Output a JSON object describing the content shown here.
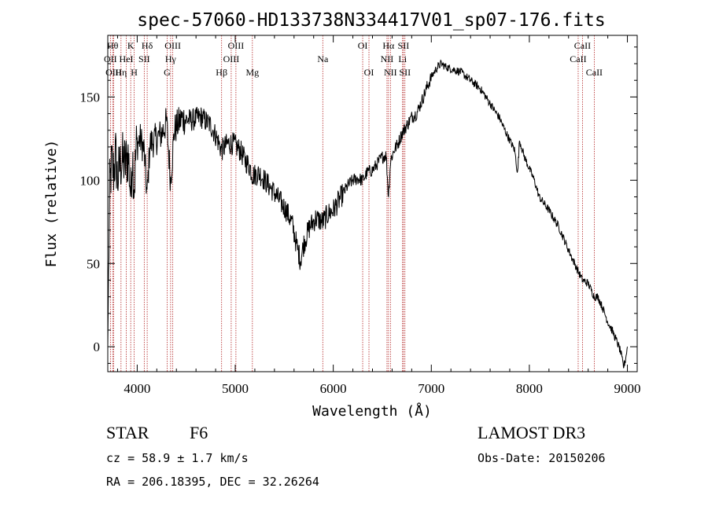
{
  "chart_data": {
    "type": "line",
    "title": "spec-57060-HD133738N334417V01_sp07-176.fits",
    "xlabel": "Wavelength (Å)",
    "ylabel": "Flux (relative)",
    "xlim": [
      3700,
      9100
    ],
    "ylim": [
      -15,
      187
    ],
    "xticks": [
      4000,
      5000,
      6000,
      7000,
      8000,
      9000
    ],
    "yticks": [
      0,
      50,
      100,
      150
    ],
    "series": [
      {
        "name": "flux",
        "anchors": [
          [
            3700,
            0
          ],
          [
            3705,
            25
          ],
          [
            3712,
            60
          ],
          [
            3720,
            95
          ],
          [
            3740,
            110
          ],
          [
            3760,
            105
          ],
          [
            3780,
            115
          ],
          [
            3800,
            100
          ],
          [
            3820,
            108
          ],
          [
            3850,
            112
          ],
          [
            3880,
            110
          ],
          [
            3910,
            115
          ],
          [
            3935,
            90
          ],
          [
            3950,
            118
          ],
          [
            3970,
            95
          ],
          [
            3990,
            120
          ],
          [
            4030,
            125
          ],
          [
            4070,
            118
          ],
          [
            4101,
            90
          ],
          [
            4130,
            122
          ],
          [
            4200,
            125
          ],
          [
            4250,
            128
          ],
          [
            4300,
            135
          ],
          [
            4340,
            100
          ],
          [
            4380,
            130
          ],
          [
            4450,
            137
          ],
          [
            4550,
            136
          ],
          [
            4650,
            138
          ],
          [
            4750,
            133
          ],
          [
            4800,
            127
          ],
          [
            4861,
            118
          ],
          [
            4920,
            122
          ],
          [
            4980,
            122
          ],
          [
            5050,
            118
          ],
          [
            5100,
            112
          ],
          [
            5150,
            108
          ],
          [
            5175,
            103
          ],
          [
            5250,
            104
          ],
          [
            5300,
            100
          ],
          [
            5380,
            94
          ],
          [
            5450,
            88
          ],
          [
            5520,
            82
          ],
          [
            5580,
            74
          ],
          [
            5630,
            60
          ],
          [
            5665,
            52
          ],
          [
            5700,
            62
          ],
          [
            5760,
            72
          ],
          [
            5820,
            77
          ],
          [
            5893,
            75
          ],
          [
            5950,
            80
          ],
          [
            6000,
            82
          ],
          [
            6060,
            88
          ],
          [
            6100,
            92
          ],
          [
            6150,
            97
          ],
          [
            6200,
            100
          ],
          [
            6250,
            101
          ],
          [
            6300,
            100
          ],
          [
            6350,
            105
          ],
          [
            6400,
            106
          ],
          [
            6450,
            110
          ],
          [
            6500,
            114
          ],
          [
            6540,
            115
          ],
          [
            6563,
            90
          ],
          [
            6585,
            112
          ],
          [
            6620,
            118
          ],
          [
            6660,
            122
          ],
          [
            6700,
            128
          ],
          [
            6740,
            132
          ],
          [
            6800,
            138
          ],
          [
            6850,
            140
          ],
          [
            6900,
            147
          ],
          [
            6950,
            155
          ],
          [
            7000,
            162
          ],
          [
            7050,
            167
          ],
          [
            7100,
            170
          ],
          [
            7150,
            168
          ],
          [
            7200,
            167
          ],
          [
            7300,
            165
          ],
          [
            7400,
            160
          ],
          [
            7500,
            155
          ],
          [
            7600,
            146
          ],
          [
            7700,
            137
          ],
          [
            7750,
            130
          ],
          [
            7800,
            124
          ],
          [
            7850,
            118
          ],
          [
            7880,
            104
          ],
          [
            7900,
            124
          ],
          [
            7950,
            114
          ],
          [
            8000,
            107
          ],
          [
            8050,
            100
          ],
          [
            8100,
            90
          ],
          [
            8200,
            82
          ],
          [
            8300,
            72
          ],
          [
            8400,
            58
          ],
          [
            8500,
            45
          ],
          [
            8542,
            40
          ],
          [
            8600,
            38
          ],
          [
            8662,
            30
          ],
          [
            8700,
            30
          ],
          [
            8750,
            23
          ],
          [
            8800,
            15
          ],
          [
            8850,
            9
          ],
          [
            8900,
            2
          ],
          [
            8930,
            -3
          ],
          [
            8960,
            -12
          ],
          [
            8980,
            -8
          ],
          [
            9000,
            0
          ]
        ]
      }
    ],
    "lines": [
      {
        "label": "OII",
        "w": 3727,
        "row": 2
      },
      {
        "label": "Hθ",
        "w": 3750,
        "row": 1
      },
      {
        "label": "OIII",
        "w": 3760,
        "row": 3
      },
      {
        "label": "Hη",
        "w": 3835,
        "row": 3
      },
      {
        "label": "HeI",
        "w": 3889,
        "row": 2
      },
      {
        "label": "K",
        "w": 3934,
        "row": 1
      },
      {
        "label": "H",
        "w": 3969,
        "row": 3
      },
      {
        "label": "SII",
        "w": 4072,
        "row": 2
      },
      {
        "label": "Hδ",
        "w": 4102,
        "row": 1
      },
      {
        "label": "G",
        "w": 4305,
        "row": 3
      },
      {
        "label": "Hγ",
        "w": 4341,
        "row": 2
      },
      {
        "label": "OIII",
        "w": 4363,
        "row": 1
      },
      {
        "label": "Hβ",
        "w": 4861,
        "row": 3
      },
      {
        "label": "OIII",
        "w": 4959,
        "row": 2
      },
      {
        "label": "OIII",
        "w": 5007,
        "row": 1
      },
      {
        "label": "Mg",
        "w": 5175,
        "row": 3
      },
      {
        "label": "Na",
        "w": 5893,
        "row": 2
      },
      {
        "label": "OI",
        "w": 6300,
        "row": 1
      },
      {
        "label": "OI",
        "w": 6364,
        "row": 3
      },
      {
        "label": "NII",
        "w": 6548,
        "row": 2
      },
      {
        "label": "Hα",
        "w": 6563,
        "row": 1
      },
      {
        "label": "NII",
        "w": 6583,
        "row": 3
      },
      {
        "label": "Li",
        "w": 6707,
        "row": 2
      },
      {
        "label": "SII",
        "w": 6716,
        "row": 1
      },
      {
        "label": "SII",
        "w": 6731,
        "row": 3
      },
      {
        "label": "CaII",
        "w": 8498,
        "row": 2
      },
      {
        "label": "CaII",
        "w": 8542,
        "row": 1
      },
      {
        "label": "CaII",
        "w": 8662,
        "row": 3
      }
    ]
  },
  "info": {
    "class_label": "STAR",
    "subclass": "F6",
    "survey": "LAMOST DR3",
    "cz": "cz = 58.9 ± 1.7 km/s",
    "obs_date": "Obs-Date: 20150206",
    "coords": "RA = 206.18395, DEC =  32.26264"
  },
  "colors": {
    "line_marker": "#b22222",
    "curve": "#000000"
  }
}
